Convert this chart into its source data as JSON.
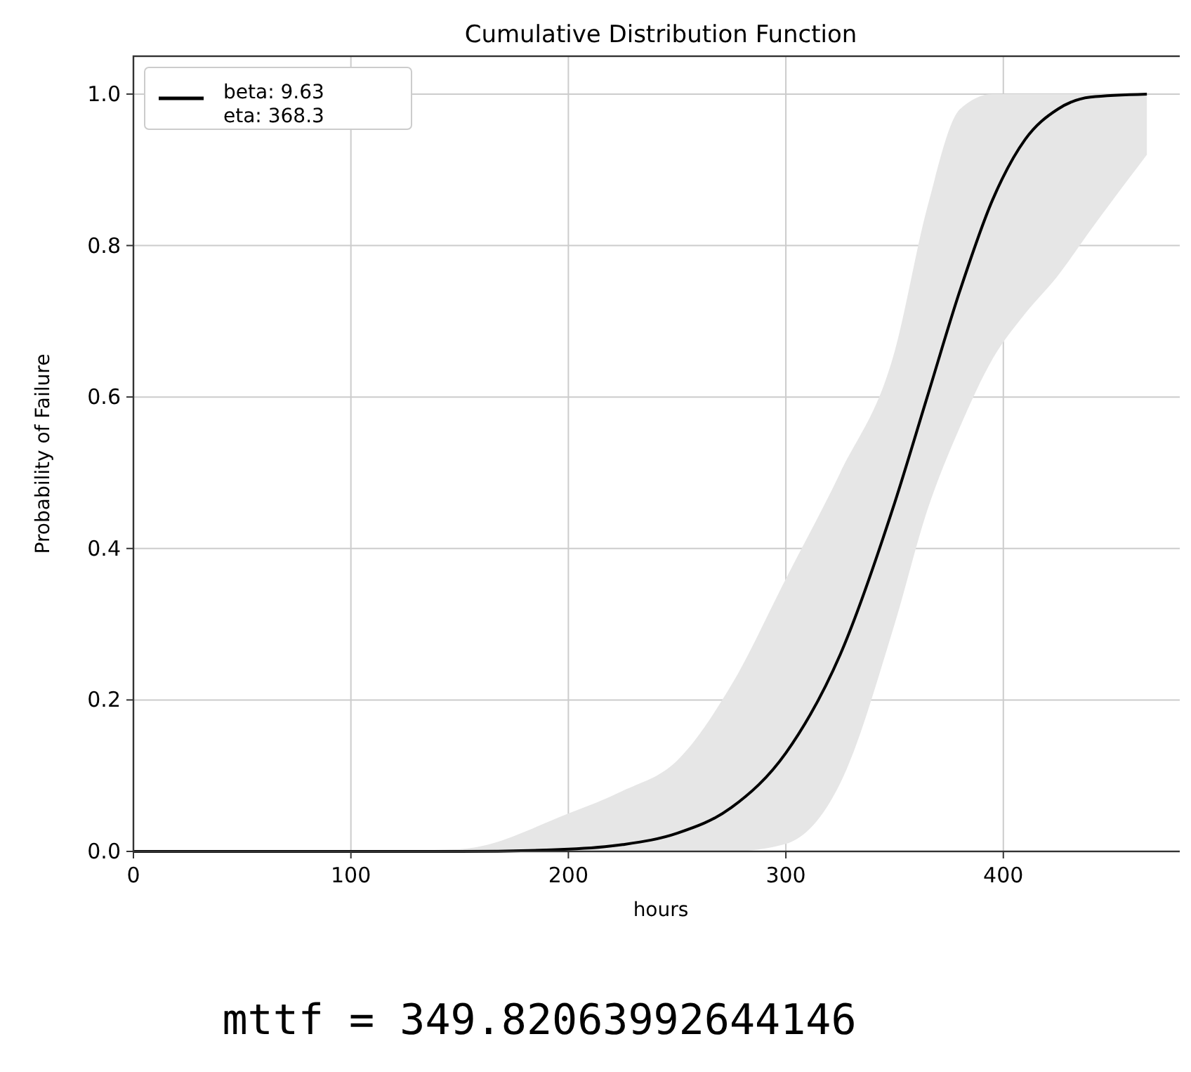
{
  "chart_data": {
    "type": "line",
    "title": "Cumulative Distribution Function",
    "xlabel": "hours",
    "ylabel": "Probability of Failure",
    "xlim": [
      0,
      485
    ],
    "ylim": [
      0,
      1.05
    ],
    "xticks": [
      0,
      100,
      200,
      300,
      400
    ],
    "yticks": [
      {
        "value": 0,
        "label": "0.0"
      },
      {
        "value": 0.2,
        "label": "0.2"
      },
      {
        "value": 0.4,
        "label": "0.4"
      },
      {
        "value": 0.6,
        "label": "0.6"
      },
      {
        "value": 0.8,
        "label": "0.8"
      },
      {
        "value": 1,
        "label": "1.0"
      }
    ],
    "grid": true,
    "legend": "top left",
    "line_style": "solid",
    "marker": "none",
    "x": [
      0,
      100,
      150,
      200,
      225,
      250,
      275,
      300,
      325,
      350,
      365,
      380,
      395,
      410,
      425,
      440,
      466
    ],
    "series": [
      {
        "name": "beta: 9.63\neta: 368.3",
        "color": "#000000",
        "values": [
          0,
          0,
          0,
          0.003,
          0.009,
          0.024,
          0.058,
          0.13,
          0.26,
          0.46,
          0.6,
          0.74,
          0.86,
          0.94,
          0.98,
          0.996,
          1.0
        ],
        "lower": [
          0,
          0,
          0,
          0,
          0,
          0,
          0,
          0.01,
          0.09,
          0.3,
          0.45,
          0.56,
          0.65,
          0.71,
          0.76,
          0.82,
          0.92
        ],
        "upper": [
          0,
          0,
          0.003,
          0.05,
          0.08,
          0.12,
          0.22,
          0.36,
          0.5,
          0.66,
          0.85,
          0.98,
          1.0,
          1.0,
          1.0,
          1.0,
          1.0
        ]
      }
    ],
    "annotations": [
      "mttf = 349.82063992644146"
    ]
  }
}
